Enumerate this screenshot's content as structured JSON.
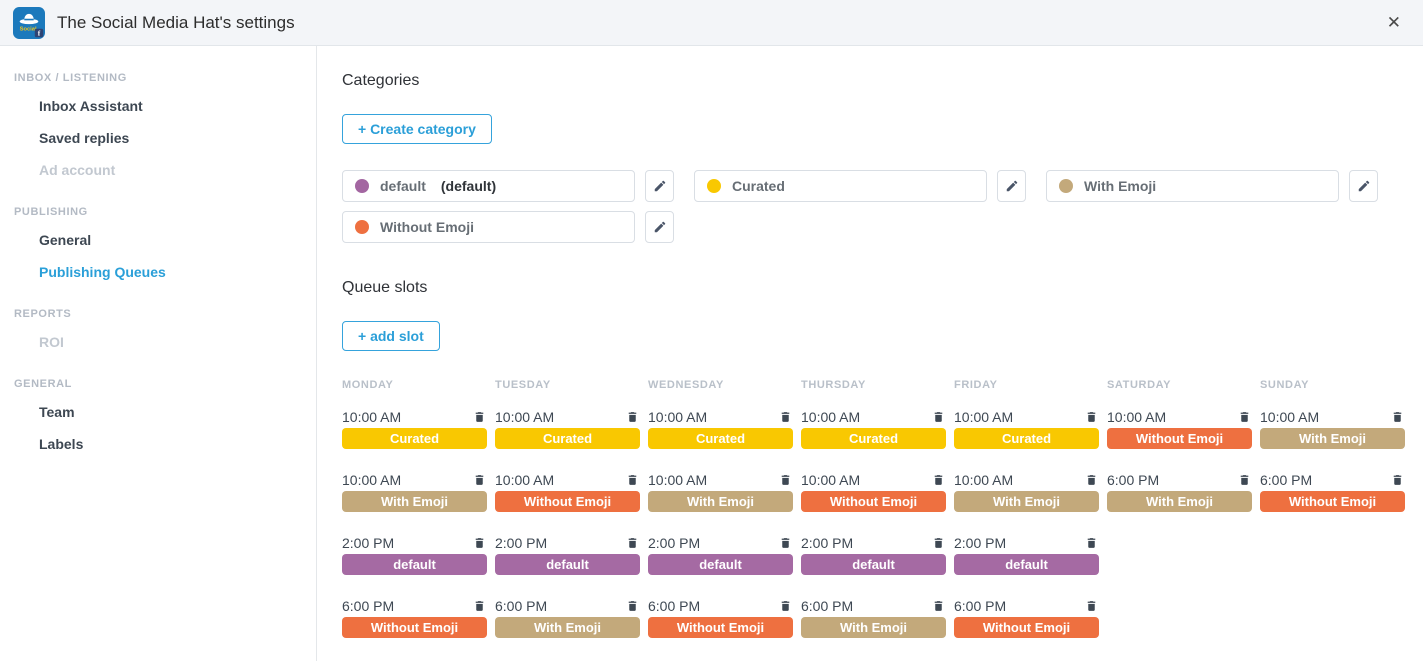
{
  "header": {
    "title": "The Social Media Hat's settings",
    "close_label": "✕"
  },
  "sidebar": {
    "sections": [
      {
        "label": "INBOX / LISTENING",
        "items": [
          {
            "label": "Inbox Assistant",
            "state": "normal"
          },
          {
            "label": "Saved replies",
            "state": "normal"
          },
          {
            "label": "Ad account",
            "state": "disabled"
          }
        ]
      },
      {
        "label": "PUBLISHING",
        "items": [
          {
            "label": "General",
            "state": "normal"
          },
          {
            "label": "Publishing Queues",
            "state": "active"
          }
        ]
      },
      {
        "label": "REPORTS",
        "items": [
          {
            "label": "ROI",
            "state": "disabled"
          }
        ]
      },
      {
        "label": "GENERAL",
        "items": [
          {
            "label": "Team",
            "state": "normal"
          },
          {
            "label": "Labels",
            "state": "normal"
          }
        ]
      }
    ]
  },
  "categories": {
    "title": "Categories",
    "create_button": "+ Create category",
    "items": [
      {
        "name": "default",
        "suffix": "(default)",
        "color": "#a366a1"
      },
      {
        "name": "Curated",
        "suffix": "",
        "color": "#f9c801"
      },
      {
        "name": "With Emoji",
        "suffix": "",
        "color": "#c3a97b"
      },
      {
        "name": "Without Emoji",
        "suffix": "",
        "color": "#ee7040"
      }
    ]
  },
  "queue": {
    "title": "Queue slots",
    "add_button": "+ add slot",
    "category_colors": {
      "default": "#a56aa3",
      "Curated": "#f9c801",
      "With Emoji": "#c3a97b",
      "Without Emoji": "#ee7040"
    },
    "days": [
      {
        "label": "MONDAY",
        "slots": [
          {
            "time": "10:00 AM",
            "category": "Curated"
          },
          {
            "time": "10:00 AM",
            "category": "With Emoji"
          },
          {
            "time": "2:00 PM",
            "category": "default"
          },
          {
            "time": "6:00 PM",
            "category": "Without Emoji"
          }
        ]
      },
      {
        "label": "TUESDAY",
        "slots": [
          {
            "time": "10:00 AM",
            "category": "Curated"
          },
          {
            "time": "10:00 AM",
            "category": "Without Emoji"
          },
          {
            "time": "2:00 PM",
            "category": "default"
          },
          {
            "time": "6:00 PM",
            "category": "With Emoji"
          }
        ]
      },
      {
        "label": "WEDNESDAY",
        "slots": [
          {
            "time": "10:00 AM",
            "category": "Curated"
          },
          {
            "time": "10:00 AM",
            "category": "With Emoji"
          },
          {
            "time": "2:00 PM",
            "category": "default"
          },
          {
            "time": "6:00 PM",
            "category": "Without Emoji"
          }
        ]
      },
      {
        "label": "THURSDAY",
        "slots": [
          {
            "time": "10:00 AM",
            "category": "Curated"
          },
          {
            "time": "10:00 AM",
            "category": "Without Emoji"
          },
          {
            "time": "2:00 PM",
            "category": "default"
          },
          {
            "time": "6:00 PM",
            "category": "With Emoji"
          }
        ]
      },
      {
        "label": "FRIDAY",
        "slots": [
          {
            "time": "10:00 AM",
            "category": "Curated"
          },
          {
            "time": "10:00 AM",
            "category": "With Emoji"
          },
          {
            "time": "2:00 PM",
            "category": "default"
          },
          {
            "time": "6:00 PM",
            "category": "Without Emoji"
          }
        ]
      },
      {
        "label": "SATURDAY",
        "slots": [
          {
            "time": "10:00 AM",
            "category": "Without Emoji"
          },
          {
            "time": "6:00 PM",
            "category": "With Emoji"
          }
        ]
      },
      {
        "label": "SUNDAY",
        "slots": [
          {
            "time": "10:00 AM",
            "category": "With Emoji"
          },
          {
            "time": "6:00 PM",
            "category": "Without Emoji"
          }
        ]
      }
    ]
  }
}
